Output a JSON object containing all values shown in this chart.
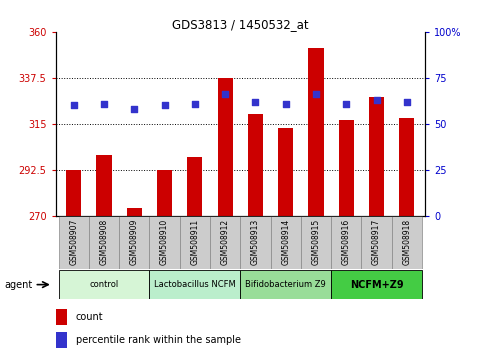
{
  "title": "GDS3813 / 1450532_at",
  "samples": [
    "GSM508907",
    "GSM508908",
    "GSM508909",
    "GSM508910",
    "GSM508911",
    "GSM508912",
    "GSM508913",
    "GSM508914",
    "GSM508915",
    "GSM508916",
    "GSM508917",
    "GSM508918"
  ],
  "bar_values": [
    292.5,
    300.0,
    274.0,
    292.5,
    299.0,
    337.5,
    320.0,
    313.0,
    352.0,
    317.0,
    328.0,
    318.0
  ],
  "percentile_values": [
    60,
    61,
    58,
    60,
    61,
    66,
    62,
    61,
    66,
    61,
    63,
    62
  ],
  "bar_color": "#cc0000",
  "dot_color": "#3333cc",
  "ylim_left": [
    270,
    360
  ],
  "ylim_right": [
    0,
    100
  ],
  "yticks_left": [
    270,
    292.5,
    315,
    337.5,
    360
  ],
  "yticks_right": [
    0,
    25,
    50,
    75,
    100
  ],
  "ytick_labels_left": [
    "270",
    "292.5",
    "315",
    "337.5",
    "360"
  ],
  "ytick_labels_right": [
    "0",
    "25",
    "50",
    "75",
    "100%"
  ],
  "groups": [
    {
      "label": "control",
      "start": 0,
      "end": 2,
      "color": "#d6f5d6"
    },
    {
      "label": "Lactobacillus NCFM",
      "start": 3,
      "end": 5,
      "color": "#bbeecc"
    },
    {
      "label": "Bifidobacterium Z9",
      "start": 6,
      "end": 8,
      "color": "#99dd99"
    },
    {
      "label": "NCFM+Z9",
      "start": 9,
      "end": 11,
      "color": "#44cc44"
    }
  ],
  "agent_label": "agent",
  "legend_count_label": "count",
  "legend_percentile_label": "percentile rank within the sample",
  "bar_width": 0.5,
  "grid_color": "#000000",
  "background_color": "#ffffff",
  "plot_bg_color": "#ffffff",
  "tick_color_left": "#cc0000",
  "tick_color_right": "#0000cc",
  "sample_bg_color": "#cccccc",
  "sample_border_color": "#888888"
}
